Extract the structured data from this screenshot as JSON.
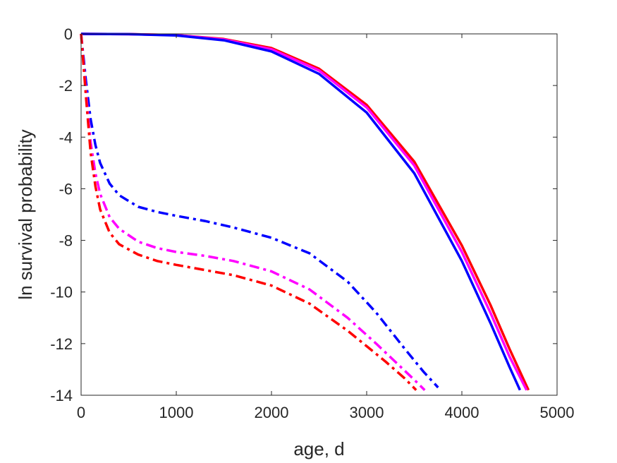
{
  "chart_data": {
    "type": "line",
    "title": "",
    "xlabel": "age, d",
    "ylabel": "ln survival probability",
    "xlim": [
      0,
      5000
    ],
    "ylim": [
      -14,
      0
    ],
    "xticks": [
      0,
      1000,
      2000,
      3000,
      4000,
      5000
    ],
    "yticks": [
      0,
      -2,
      -4,
      -6,
      -8,
      -10,
      -12,
      -14
    ],
    "xtick_labels": [
      "0",
      "1000",
      "2000",
      "3000",
      "4000",
      "5000"
    ],
    "ytick_labels": [
      "0",
      "-2",
      "-4",
      "-6",
      "-8",
      "-10",
      "-12",
      "-14"
    ],
    "grid": false,
    "legend": "none",
    "series": [
      {
        "color": "#ff0000",
        "style": "solid",
        "x": [
          0,
          500,
          1000,
          1500,
          2000,
          2500,
          3000,
          3500,
          4000,
          4300,
          4500,
          4700
        ],
        "y": [
          0,
          -0.01,
          -0.05,
          -0.2,
          -0.55,
          -1.35,
          -2.75,
          -4.95,
          -8.2,
          -10.5,
          -12.2,
          -13.8
        ]
      },
      {
        "color": "#ff00ff",
        "style": "solid",
        "x": [
          0,
          500,
          1000,
          1500,
          2000,
          2500,
          3000,
          3500,
          4000,
          4300,
          4500,
          4680
        ],
        "y": [
          0,
          -0.01,
          -0.05,
          -0.22,
          -0.6,
          -1.42,
          -2.85,
          -5.1,
          -8.45,
          -10.8,
          -12.5,
          -13.8
        ]
      },
      {
        "color": "#0000ff",
        "style": "solid",
        "x": [
          0,
          500,
          1000,
          1500,
          2000,
          2500,
          3000,
          3500,
          4000,
          4300,
          4500,
          4610
        ],
        "y": [
          0,
          -0.01,
          -0.06,
          -0.25,
          -0.68,
          -1.55,
          -3.05,
          -5.4,
          -8.8,
          -11.2,
          -12.9,
          -13.8
        ]
      },
      {
        "color": "#0000ff",
        "style": "dashdot",
        "x": [
          0,
          50,
          100,
          150,
          200,
          300,
          400,
          600,
          800,
          1000,
          1300,
          1600,
          2000,
          2400,
          2800,
          3100,
          3400,
          3600,
          3750
        ],
        "y": [
          0,
          -1.8,
          -3.3,
          -4.3,
          -5.0,
          -5.8,
          -6.25,
          -6.7,
          -6.9,
          -7.05,
          -7.25,
          -7.5,
          -7.9,
          -8.5,
          -9.6,
          -10.8,
          -12.2,
          -13.1,
          -13.7
        ]
      },
      {
        "color": "#ff00ff",
        "style": "dashdot",
        "x": [
          0,
          50,
          100,
          150,
          200,
          300,
          400,
          600,
          800,
          1000,
          1300,
          1600,
          2000,
          2400,
          2800,
          3100,
          3300,
          3500,
          3610
        ],
        "y": [
          0,
          -2.2,
          -4.2,
          -5.4,
          -6.2,
          -7.1,
          -7.55,
          -8.05,
          -8.3,
          -8.45,
          -8.6,
          -8.8,
          -9.2,
          -9.9,
          -11.0,
          -12.0,
          -12.7,
          -13.4,
          -13.8
        ]
      },
      {
        "color": "#ff0000",
        "style": "dashdot",
        "x": [
          0,
          50,
          100,
          150,
          200,
          300,
          400,
          600,
          800,
          1000,
          1300,
          1600,
          2000,
          2400,
          2800,
          3000,
          3200,
          3400,
          3520
        ],
        "y": [
          0,
          -2.4,
          -4.6,
          -5.9,
          -6.8,
          -7.7,
          -8.15,
          -8.55,
          -8.8,
          -8.95,
          -9.15,
          -9.35,
          -9.75,
          -10.45,
          -11.5,
          -12.1,
          -12.7,
          -13.35,
          -13.8
        ]
      }
    ]
  }
}
